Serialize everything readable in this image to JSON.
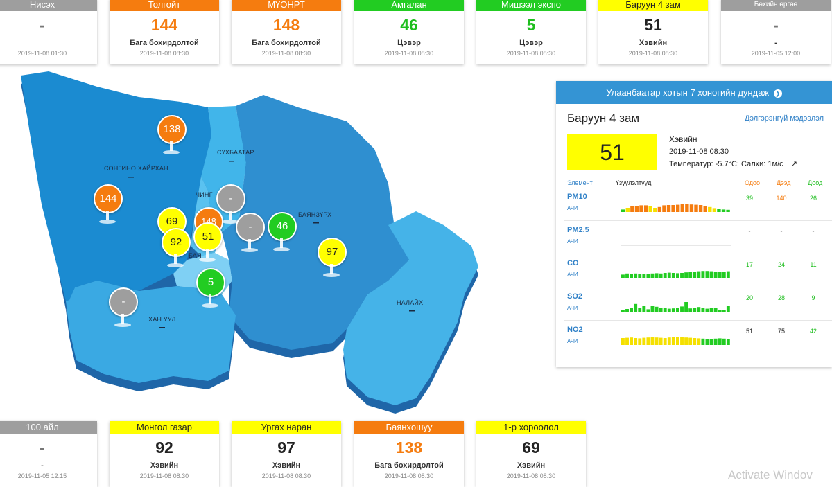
{
  "top_cards": [
    {
      "name": "Нисэх",
      "value": "-",
      "status": "",
      "time": "2019-11-08 01:30",
      "level": "gray"
    },
    {
      "name": "Толгойт",
      "value": "144",
      "status": "Бага бохирдолтой",
      "time": "2019-11-08 08:30",
      "level": "orange"
    },
    {
      "name": "МҮОНРТ",
      "value": "148",
      "status": "Бага бохирдолтой",
      "time": "2019-11-08 08:30",
      "level": "orange"
    },
    {
      "name": "Амгалан",
      "value": "46",
      "status": "Цэвэр",
      "time": "2019-11-08 08:30",
      "level": "green"
    },
    {
      "name": "Мишээл экспо",
      "value": "5",
      "status": "Цэвэр",
      "time": "2019-11-08 08:30",
      "level": "green"
    },
    {
      "name": "Баруун 4 зам",
      "value": "51",
      "status": "Хэвийн",
      "time": "2019-11-08 08:30",
      "level": "yellow"
    },
    {
      "name": "Бөхийн өргөө",
      "value": "-",
      "status": "-",
      "time": "2019-11-05 12:00",
      "level": "gray"
    }
  ],
  "bottom_cards": [
    {
      "name": "100 айл",
      "value": "-",
      "status": "-",
      "time": "2019-11-05 12:15",
      "level": "gray"
    },
    {
      "name": "Монгол газар",
      "value": "92",
      "status": "Хэвийн",
      "time": "2019-11-08 08:30",
      "level": "yellow"
    },
    {
      "name": "Ургах наран",
      "value": "97",
      "status": "Хэвийн",
      "time": "2019-11-08 08:30",
      "level": "yellow"
    },
    {
      "name": "Баянхошуу",
      "value": "138",
      "status": "Бага бохирдолтой",
      "time": "2019-11-08 08:30",
      "level": "orange"
    },
    {
      "name": "1-р хороолол",
      "value": "69",
      "status": "Хэвийн",
      "time": "2019-11-08 08:30",
      "level": "yellow"
    }
  ],
  "map": {
    "districts": [
      "СОНГИНО ХАЙРХАН",
      "СҮХБААТАР",
      "ЧИНГ",
      "БАЯНЗҮРХ",
      "БАЯ",
      "ХАН УУЛ",
      "НАЛАЙХ"
    ],
    "markers": [
      {
        "value": "138",
        "level": "orange"
      },
      {
        "value": "144",
        "level": "orange"
      },
      {
        "value": "69",
        "level": "yellow"
      },
      {
        "value": "148",
        "level": "orange"
      },
      {
        "value": "-",
        "level": "gray"
      },
      {
        "value": "92",
        "level": "yellow"
      },
      {
        "value": "51",
        "level": "yellow"
      },
      {
        "value": "-",
        "level": "gray"
      },
      {
        "value": "46",
        "level": "green"
      },
      {
        "value": "97",
        "level": "yellow"
      },
      {
        "value": "5",
        "level": "green"
      },
      {
        "value": "-",
        "level": "gray"
      }
    ]
  },
  "panel": {
    "title": "Улаанбаатар хотын 7 хоногийн дундаж",
    "station": "Баруун 4 зам",
    "more_link": "Дэлгэрэнгүй мэдээлэл",
    "aqi": "51",
    "status": "Хэвийн",
    "time": "2019-11-08 08:30",
    "weather": "Температур: -5.7°C; Салхи: 1м/с",
    "headers": {
      "element": "Элемент",
      "indicators": "Үзүүлэлтүүд",
      "now": "Одоо",
      "max": "Дээд",
      "min": "Доод"
    },
    "rows": [
      {
        "name": "PM10",
        "unit": "АЧИ",
        "now": "39",
        "max": "140",
        "min": "26",
        "now_color": "#1ebe1e",
        "max_color": "#f57c0f",
        "min_color": "#1ebe1e",
        "bars": [
          18,
          30,
          44,
          40,
          48,
          48,
          40,
          30,
          36,
          48,
          50,
          50,
          52,
          56,
          56,
          54,
          52,
          50,
          44,
          36,
          28,
          24,
          18,
          16
        ],
        "bar_colors": [
          "#22cc22",
          "#f5e000",
          "#f57c0f",
          "#f57c0f",
          "#f57c0f",
          "#f57c0f",
          "#f5e000",
          "#f5e000",
          "#f57c0f",
          "#f57c0f",
          "#f57c0f",
          "#f57c0f",
          "#f57c0f",
          "#f57c0f",
          "#f57c0f",
          "#f57c0f",
          "#f57c0f",
          "#f57c0f",
          "#f57c0f",
          "#f5e000",
          "#f5e000",
          "#22cc22",
          "#22cc22",
          "#22cc22"
        ]
      },
      {
        "name": "PM2.5",
        "unit": "АЧИ",
        "now": "-",
        "max": "-",
        "min": "-",
        "now_color": "#999",
        "max_color": "#999",
        "min_color": "#999",
        "bars": [],
        "bar_colors": []
      },
      {
        "name": "CO",
        "unit": "АЧИ",
        "now": "17",
        "max": "24",
        "min": "11",
        "now_color": "#1ebe1e",
        "max_color": "#1ebe1e",
        "min_color": "#1ebe1e",
        "bars": [
          28,
          36,
          34,
          36,
          34,
          30,
          32,
          36,
          38,
          36,
          40,
          42,
          40,
          38,
          40,
          44,
          46,
          50,
          52,
          54,
          54,
          52,
          50,
          48,
          50,
          52
        ],
        "bar_colors": "#22cc22"
      },
      {
        "name": "SO2",
        "unit": "АЧИ",
        "now": "20",
        "max": "28",
        "min": "9",
        "now_color": "#1ebe1e",
        "max_color": "#1ebe1e",
        "min_color": "#1ebe1e",
        "bars": [
          12,
          20,
          30,
          56,
          28,
          40,
          18,
          40,
          36,
          26,
          30,
          22,
          24,
          30,
          38,
          70,
          24,
          30,
          34,
          26,
          22,
          28,
          26,
          12,
          10,
          40
        ],
        "bar_colors": "#22cc22"
      },
      {
        "name": "NO2",
        "unit": "АЧИ",
        "now": "51",
        "max": "75",
        "min": "42",
        "now_color": "#222",
        "max_color": "#222",
        "min_color": "#1ebe1e",
        "bars": [
          50,
          52,
          54,
          50,
          48,
          52,
          54,
          56,
          54,
          52,
          50,
          54,
          56,
          58,
          56,
          54,
          52,
          50,
          48,
          46,
          44,
          44,
          46,
          48,
          46,
          44
        ],
        "bar_colors": [
          "#f5e000",
          "#f5e000",
          "#f5e000",
          "#f5e000",
          "#f5e000",
          "#f5e000",
          "#f5e000",
          "#f5e000",
          "#f5e000",
          "#f5e000",
          "#f5e000",
          "#f5e000",
          "#f5e000",
          "#f5e000",
          "#f5e000",
          "#f5e000",
          "#f5e000",
          "#f5e000",
          "#f5e000",
          "#22cc22",
          "#22cc22",
          "#22cc22",
          "#22cc22",
          "#22cc22",
          "#22cc22",
          "#22cc22"
        ]
      }
    ]
  },
  "watermark": "Activate Windov"
}
